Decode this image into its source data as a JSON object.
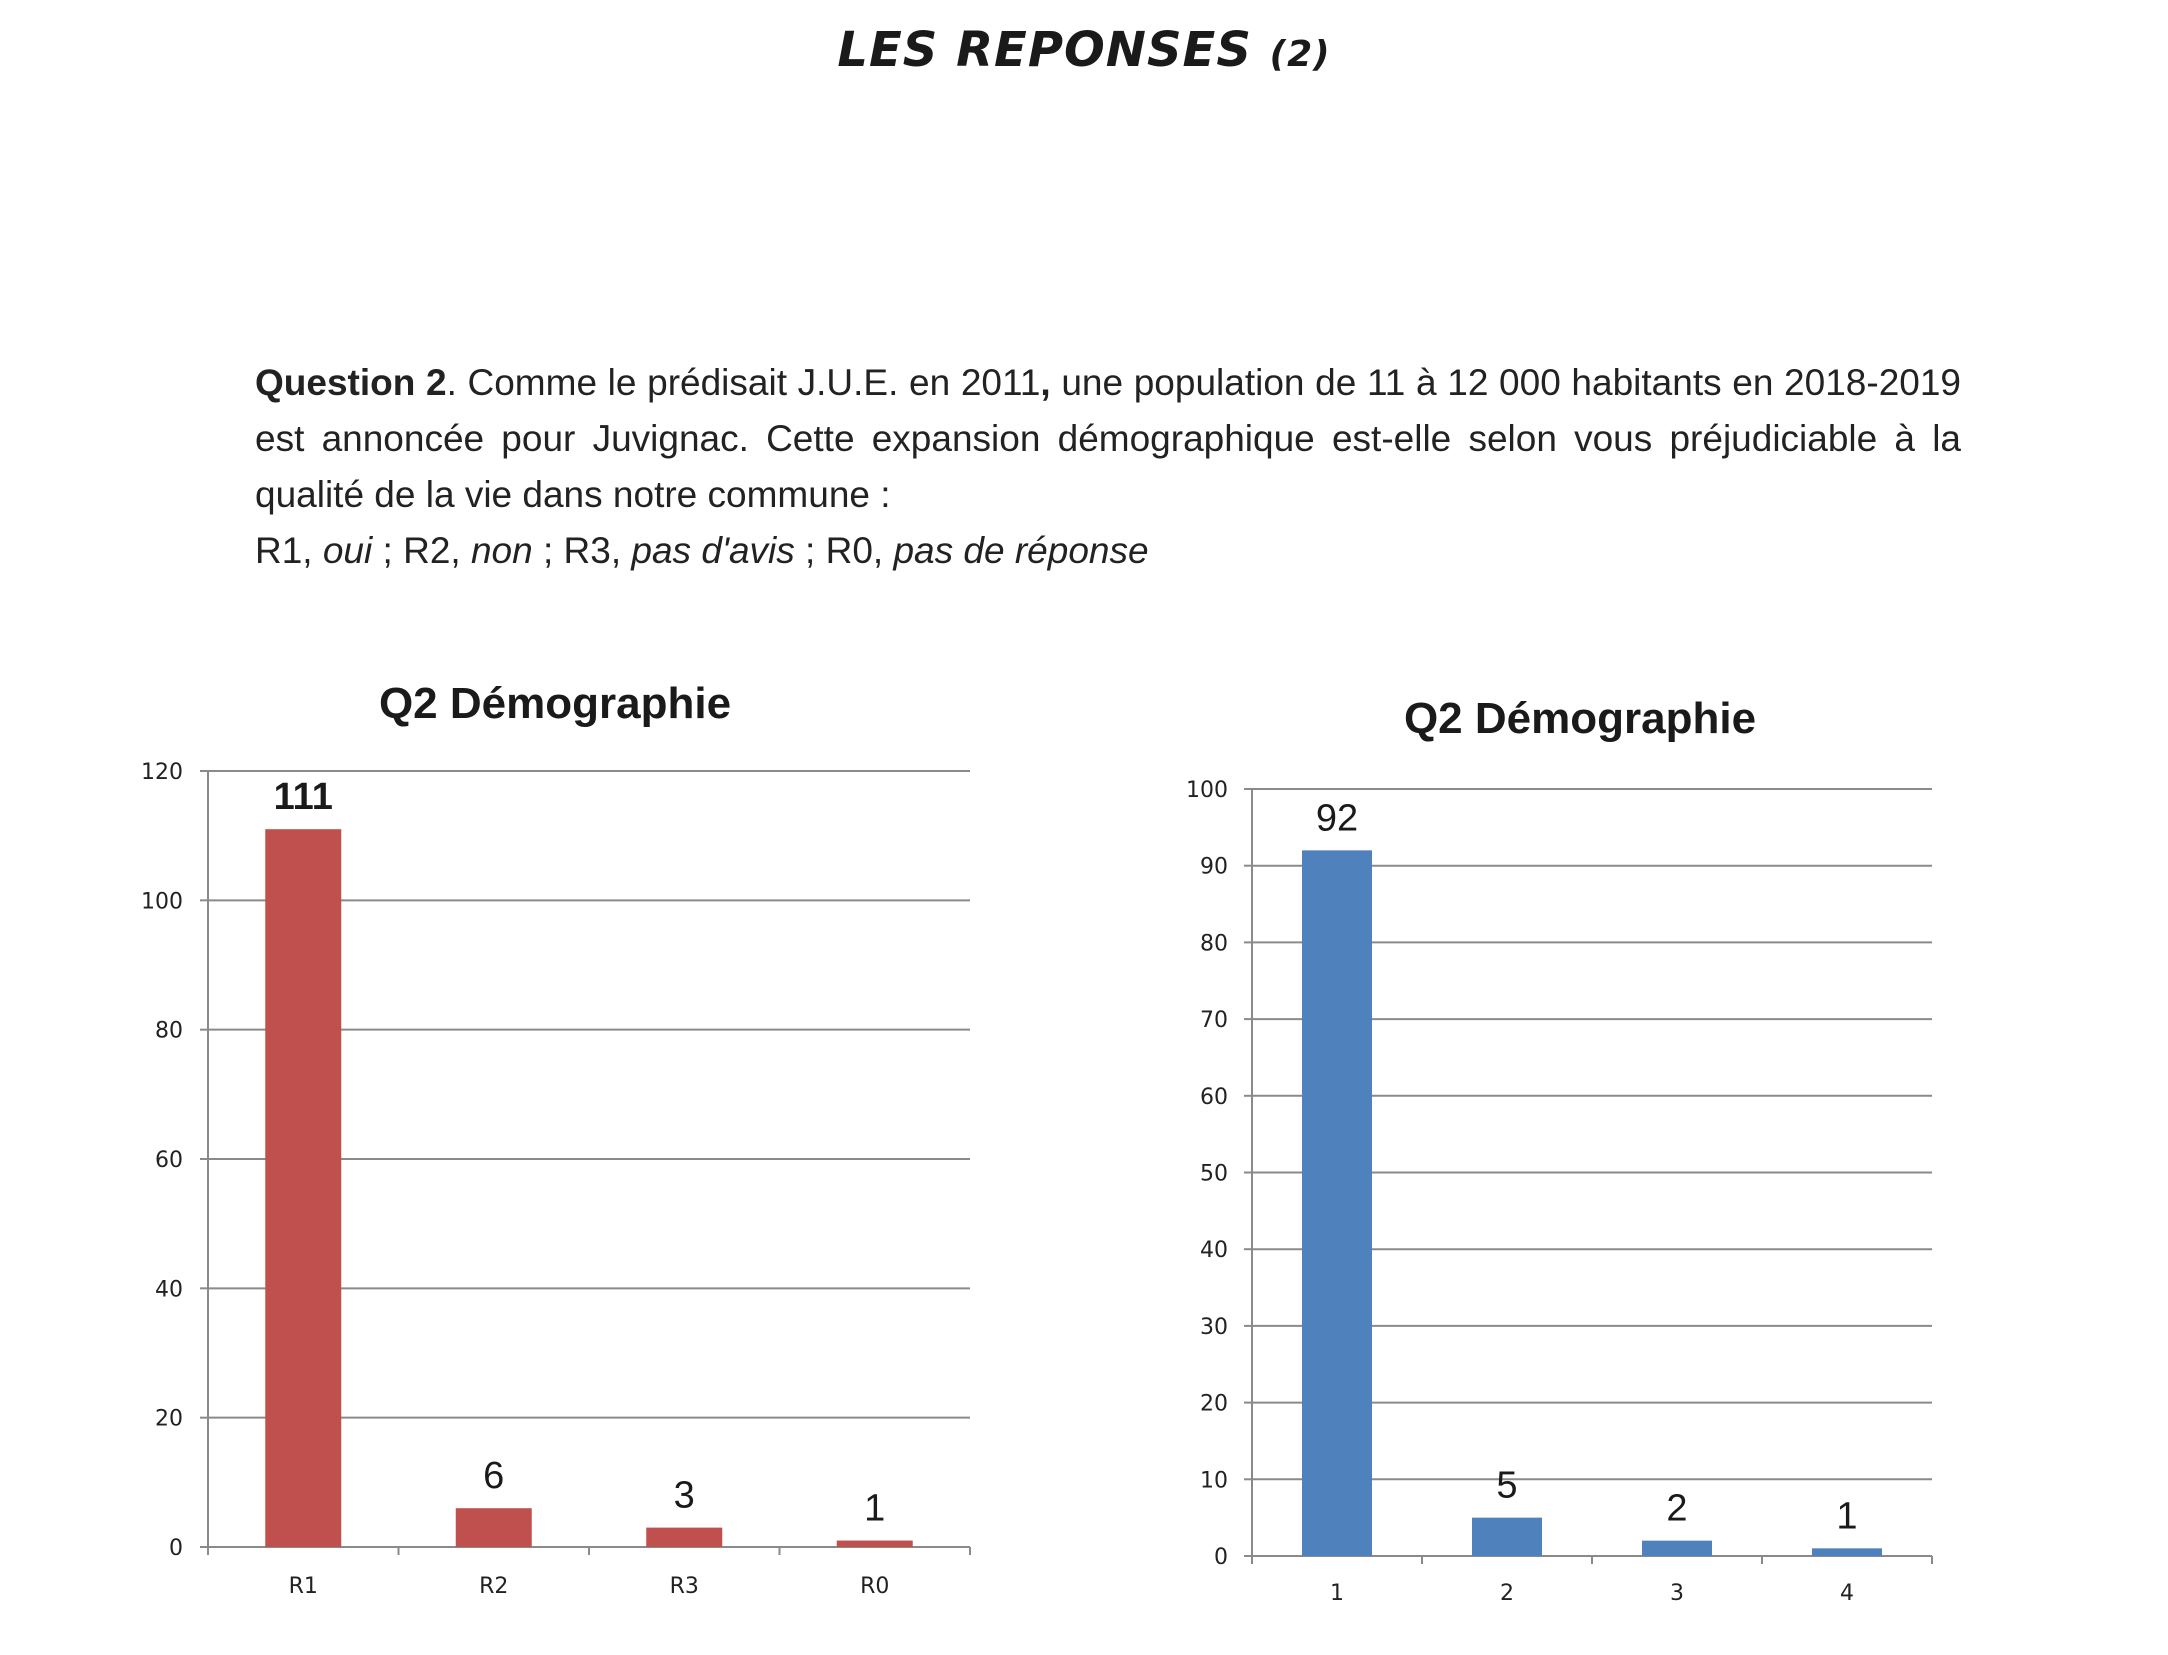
{
  "page": {
    "title": "LES REPONSES",
    "title_suffix": "(2)"
  },
  "question": {
    "label": "Question 2",
    "text_after_label": ". Comme le prédisait J.U.E. en 2011",
    "text_comma": ",",
    "text_body": " une population de 11 à 12 000 habitants en 2018-2019 est annoncée pour Juvignac. Cette expansion démographique est-elle selon vous préjudiciable à la qualité de la vie dans notre commune :",
    "options": [
      {
        "code": "R1, ",
        "meaning": "oui"
      },
      {
        "code": "R2, ",
        "meaning": "non"
      },
      {
        "code": "R3, ",
        "meaning": "pas d'avis"
      },
      {
        "code": "R0, ",
        "meaning": "pas de réponse"
      }
    ],
    "option_sep": " ; "
  },
  "chart_data": [
    {
      "type": "bar",
      "title": "Q2 Démographie",
      "xlabel": "",
      "ylabel": "",
      "categories": [
        "R1",
        "R2",
        "R3",
        "R0"
      ],
      "values": [
        111,
        6,
        3,
        1
      ],
      "ylim": [
        0,
        120
      ],
      "yticks": [
        0,
        20,
        40,
        60,
        80,
        100,
        120
      ],
      "bar_color": "#c0504d",
      "grid": true,
      "legend": "none"
    },
    {
      "type": "bar",
      "title": "Q2 Démographie",
      "xlabel": "",
      "ylabel": "",
      "categories": [
        "1",
        "2",
        "3",
        "4"
      ],
      "values": [
        92,
        5,
        2,
        1
      ],
      "ylim": [
        0,
        100
      ],
      "yticks": [
        0,
        10,
        20,
        30,
        40,
        50,
        60,
        70,
        80,
        90,
        100
      ],
      "bar_color": "#4f81bd",
      "grid": true,
      "legend": "none"
    }
  ]
}
